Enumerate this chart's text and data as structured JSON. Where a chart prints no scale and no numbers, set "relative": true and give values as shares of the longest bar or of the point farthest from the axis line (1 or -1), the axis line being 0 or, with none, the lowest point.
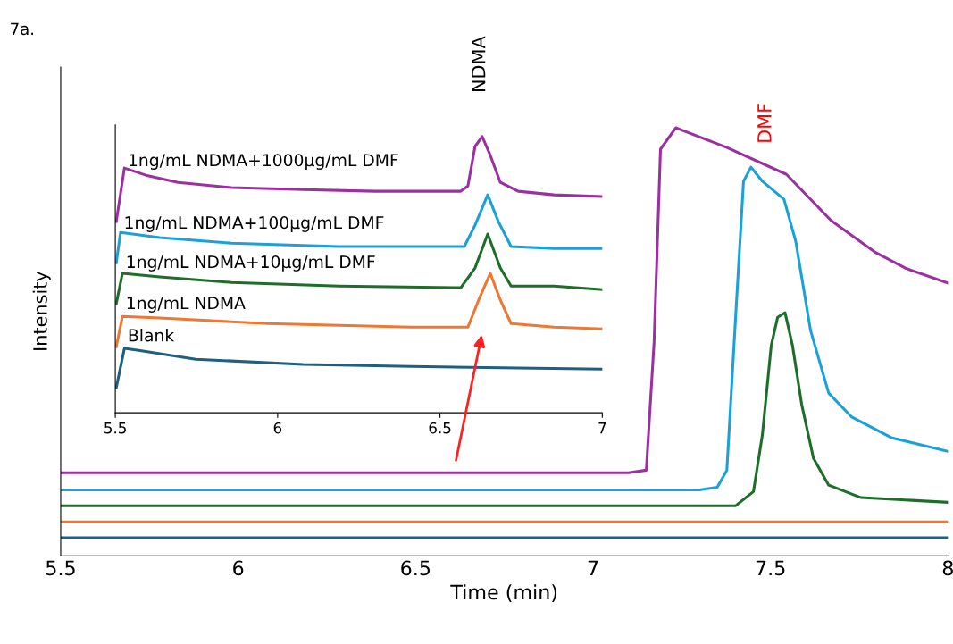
{
  "chart_data": [
    {
      "type": "line",
      "title": "7a.",
      "xlabel": "Time (min)",
      "ylabel": "Intensity",
      "relative": true,
      "tick_labels": "x",
      "legend": false,
      "grid": false,
      "xlim": [
        5.5,
        8
      ],
      "xticks": [
        5.5,
        6,
        6.5,
        7,
        7.5,
        8
      ],
      "annotations": [
        "DMF"
      ],
      "series": [
        {
          "color": "#9b30a0",
          "x": [
            5.5,
            6.5,
            7.1,
            7.15,
            7.172,
            7.19,
            7.233,
            7.377,
            7.545,
            7.671,
            7.797,
            7.88,
            8.0
          ],
          "values": [
            0.194,
            0.194,
            0.194,
            0.2,
            0.5,
            0.95,
            1.0,
            0.954,
            0.891,
            0.783,
            0.708,
            0.672,
            0.637
          ]
        },
        {
          "color": "#1ba1d8",
          "x": [
            5.5,
            6.5,
            7.3,
            7.35,
            7.377,
            7.402,
            7.424,
            7.445,
            7.477,
            7.538,
            7.571,
            7.613,
            7.664,
            7.729,
            7.84,
            8.0
          ],
          "values": [
            0.154,
            0.154,
            0.154,
            0.16,
            0.2,
            0.562,
            0.875,
            0.908,
            0.875,
            0.833,
            0.735,
            0.526,
            0.38,
            0.324,
            0.276,
            0.244
          ]
        },
        {
          "color": "#1e6e2a",
          "x": [
            5.5,
            6.5,
            7.402,
            7.452,
            7.477,
            7.502,
            7.52,
            7.541,
            7.562,
            7.588,
            7.621,
            7.664,
            7.755,
            8.0
          ],
          "values": [
            0.117,
            0.117,
            0.117,
            0.15,
            0.282,
            0.491,
            0.557,
            0.568,
            0.491,
            0.353,
            0.228,
            0.165,
            0.136,
            0.125
          ]
        },
        {
          "color": "#ee7733",
          "x": [
            5.5,
            8.0
          ],
          "values": [
            0.079,
            0.079
          ]
        },
        {
          "color": "#1f5f80",
          "x": [
            5.5,
            8.0
          ],
          "values": [
            0.042,
            0.042
          ]
        }
      ]
    },
    {
      "type": "line",
      "relative": true,
      "tick_labels": "x",
      "legend": false,
      "grid": false,
      "xlim": [
        5.5,
        7
      ],
      "xticks": [
        5.5,
        6,
        6.5,
        7
      ],
      "annotations": [
        "NDMA"
      ],
      "series": [
        {
          "name": "1ng/mL NDMA+1000µg/mL DMF",
          "color": "#9b30a0",
          "x": [
            5.503,
            5.528,
            5.594,
            5.693,
            5.858,
            6.079,
            6.3,
            6.564,
            6.586,
            6.608,
            6.63,
            6.653,
            6.686,
            6.741,
            6.851,
            7.0
          ],
          "values": [
            0.692,
            0.886,
            0.86,
            0.834,
            0.815,
            0.808,
            0.802,
            0.802,
            0.821,
            0.964,
            1.0,
            0.938,
            0.834,
            0.802,
            0.789,
            0.783
          ]
        },
        {
          "name": "1ng/mL NDMA+100µg/mL DMF",
          "color": "#1ba1d8",
          "x": [
            5.503,
            5.516,
            5.637,
            5.858,
            6.189,
            6.575,
            6.608,
            6.647,
            6.68,
            6.719,
            6.851,
            7.0
          ],
          "values": [
            0.543,
            0.653,
            0.634,
            0.614,
            0.602,
            0.602,
            0.679,
            0.789,
            0.692,
            0.602,
            0.595,
            0.595
          ]
        },
        {
          "name": "1ng/mL NDMA+10µg/mL DMF",
          "color": "#1e6e2a",
          "x": [
            5.503,
            5.522,
            5.637,
            5.858,
            6.189,
            6.564,
            6.608,
            6.647,
            6.686,
            6.719,
            6.851,
            7.0
          ],
          "values": [
            0.395,
            0.505,
            0.492,
            0.472,
            0.459,
            0.453,
            0.524,
            0.647,
            0.524,
            0.459,
            0.459,
            0.446
          ]
        },
        {
          "name": "1ng/mL NDMA",
          "color": "#ee7733",
          "x": [
            5.503,
            5.522,
            5.637,
            5.969,
            6.41,
            6.586,
            6.619,
            6.655,
            6.686,
            6.719,
            6.851,
            7.0
          ],
          "values": [
            0.239,
            0.349,
            0.343,
            0.323,
            0.31,
            0.31,
            0.408,
            0.505,
            0.408,
            0.323,
            0.31,
            0.304
          ]
        },
        {
          "name": "Blank",
          "color": "#1f5f80",
          "x": [
            5.503,
            5.528,
            5.572,
            5.748,
            6.079,
            6.41,
            6.741,
            7.0
          ],
          "values": [
            0.091,
            0.233,
            0.226,
            0.194,
            0.175,
            0.168,
            0.162,
            0.158
          ]
        }
      ]
    }
  ]
}
